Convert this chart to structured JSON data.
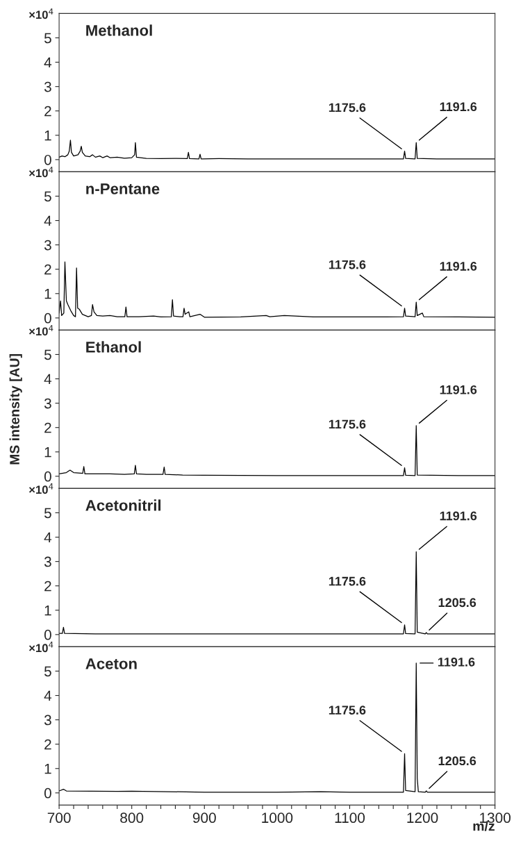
{
  "chart_data": [
    {
      "type": "line",
      "xlim": [
        700,
        1300
      ],
      "ylim": [
        -0.5,
        6.0
      ],
      "yticks": [
        0,
        1,
        2,
        3,
        4,
        5
      ],
      "tick_labels": "y",
      "grid": false,
      "legend": false,
      "marker": "none",
      "line_style": "solid",
      "series": [
        {
          "color": "#000000",
          "x": [
            700,
            704,
            708,
            712,
            714,
            715.6,
            717,
            720,
            726,
            729,
            730.5,
            732,
            736,
            742,
            746,
            750,
            756,
            760,
            766,
            770,
            780,
            790,
            800,
            804,
            805,
            806.5,
            820,
            840,
            860,
            876.5,
            878,
            879.5,
            892.5,
            894,
            895.5,
            920,
            960,
            1000,
            1050,
            1100,
            1150,
            1174,
            1175.6,
            1177,
            1190,
            1191.6,
            1193,
            1220,
            1260,
            1300
          ],
          "values": [
            0.1,
            0.15,
            0.12,
            0.2,
            0.35,
            0.8,
            0.3,
            0.15,
            0.2,
            0.35,
            0.55,
            0.3,
            0.15,
            0.12,
            0.2,
            0.1,
            0.15,
            0.08,
            0.15,
            0.08,
            0.1,
            0.06,
            0.08,
            0.2,
            0.7,
            0.1,
            0.05,
            0.04,
            0.05,
            0.04,
            0.3,
            0.04,
            0.03,
            0.22,
            0.03,
            0.04,
            0.03,
            0.03,
            0.03,
            0.03,
            0.03,
            0.03,
            0.35,
            0.05,
            0.03,
            0.7,
            0.05,
            0.03,
            0.03,
            0.03
          ]
        }
      ],
      "title": "Methanol",
      "annotations": [
        "×10$^{4}$",
        {
          "text": "1175.6",
          "x": 1175.6,
          "y": 0.35
        },
        {
          "text": "1191.6",
          "x": 1191.6,
          "y": 0.7
        }
      ]
    },
    {
      "type": "line",
      "xlim": [
        700,
        1300
      ],
      "ylim": [
        -0.5,
        6.0
      ],
      "yticks": [
        0,
        1,
        2,
        3,
        4,
        5
      ],
      "tick_labels": "y",
      "grid": false,
      "legend": false,
      "marker": "none",
      "line_style": "solid",
      "series": [
        {
          "color": "#000000",
          "x": [
            700,
            702,
            703.5,
            706.5,
            708,
            710,
            712,
            716,
            720,
            722.5,
            724,
            725.5,
            728,
            732,
            740,
            744.5,
            746,
            748,
            752,
            760,
            770,
            780,
            790.5,
            792,
            793.5,
            810,
            830,
            840,
            854.5,
            856,
            857.5,
            866,
            870.5,
            872,
            873.5,
            878.5,
            880,
            894,
            900,
            950,
            985,
            990,
            1010,
            1050,
            1100,
            1150,
            1174,
            1175.6,
            1177,
            1190,
            1191.6,
            1193,
            1200,
            1202,
            1250,
            1300
          ],
          "values": [
            0.2,
            0.7,
            0.1,
            0.2,
            2.3,
            0.7,
            0.55,
            0.3,
            0.1,
            0.05,
            2.05,
            0.4,
            0.35,
            0.15,
            0.05,
            0.1,
            0.55,
            0.25,
            0.1,
            0.08,
            0.1,
            0.05,
            0.05,
            0.45,
            0.05,
            0.05,
            0.08,
            0.04,
            0.05,
            0.75,
            0.08,
            0.05,
            0.05,
            0.4,
            0.15,
            0.25,
            0.05,
            0.15,
            0.03,
            0.04,
            0.1,
            0.05,
            0.1,
            0.04,
            0.04,
            0.04,
            0.05,
            0.4,
            0.08,
            0.05,
            0.65,
            0.1,
            0.2,
            0.05,
            0.04,
            0.03
          ]
        }
      ],
      "title": "n-Pentane",
      "annotations": [
        "×10$^{4}$",
        {
          "text": "1175.6",
          "x": 1175.6,
          "y": 0.4
        },
        {
          "text": "1191.6",
          "x": 1191.6,
          "y": 0.65
        }
      ]
    },
    {
      "type": "line",
      "xlim": [
        700,
        1300
      ],
      "ylim": [
        -0.5,
        6.0
      ],
      "yticks": [
        0,
        1,
        2,
        3,
        4,
        5
      ],
      "tick_labels": "y",
      "grid": false,
      "legend": false,
      "marker": "none",
      "line_style": "solid",
      "ylabel": "MS intensity [AU]",
      "series": [
        {
          "color": "#000000",
          "x": [
            700,
            710,
            715,
            720,
            732.5,
            734,
            735.5,
            750,
            770,
            790,
            803.5,
            805,
            806.5,
            820,
            843,
            844.6,
            846,
            870,
            900,
            1000,
            1100,
            1174,
            1175.6,
            1177,
            1190,
            1191.6,
            1193,
            1250,
            1300
          ],
          "values": [
            0.1,
            0.15,
            0.25,
            0.15,
            0.12,
            0.4,
            0.1,
            0.1,
            0.1,
            0.08,
            0.1,
            0.45,
            0.1,
            0.08,
            0.08,
            0.38,
            0.08,
            0.05,
            0.04,
            0.03,
            0.03,
            0.03,
            0.35,
            0.04,
            0.03,
            2.08,
            0.05,
            0.03,
            0.03
          ]
        }
      ],
      "title": "Ethanol",
      "annotations": [
        "×10$^{4}$",
        {
          "text": "1175.6",
          "x": 1175.6,
          "y": 0.35
        },
        {
          "text": "1191.6",
          "x": 1191.6,
          "y": 2.08
        }
      ]
    },
    {
      "type": "line",
      "xlim": [
        700,
        1300
      ],
      "ylim": [
        -0.5,
        6.0
      ],
      "yticks": [
        0,
        1,
        2,
        3,
        4,
        5
      ],
      "tick_labels": "y",
      "grid": false,
      "legend": false,
      "marker": "none",
      "line_style": "solid",
      "series": [
        {
          "color": "#000000",
          "x": [
            700,
            704.5,
            706,
            707.5,
            750,
            800,
            900,
            1000,
            1100,
            1174,
            1175.6,
            1177,
            1190,
            1191.6,
            1193,
            1204,
            1205.6,
            1207,
            1250,
            1300
          ],
          "values": [
            0.05,
            0.05,
            0.3,
            0.05,
            0.03,
            0.03,
            0.03,
            0.03,
            0.03,
            0.03,
            0.4,
            0.04,
            0.03,
            3.4,
            0.1,
            0.03,
            0.08,
            0.03,
            0.03,
            0.03
          ]
        }
      ],
      "title": "Acetonitril",
      "annotations": [
        "×10$^{4}$",
        {
          "text": "1175.6",
          "x": 1175.6,
          "y": 0.4
        },
        {
          "text": "1191.6",
          "x": 1191.6,
          "y": 3.4
        },
        {
          "text": "1205.6",
          "x": 1205.6,
          "y": 0.08
        }
      ]
    },
    {
      "type": "line",
      "xlim": [
        700,
        1300
      ],
      "ylim": [
        -0.5,
        6.0
      ],
      "yticks": [
        0,
        1,
        2,
        3,
        4,
        5
      ],
      "grid": false,
      "legend": false,
      "marker": "none",
      "line_style": "solid",
      "xlabel": "m/z",
      "xticks": [
        700,
        {
          "value": 720,
          "label": null
        },
        {
          "value": 740,
          "label": null
        },
        {
          "value": 760,
          "label": null
        },
        {
          "value": 780,
          "label": null
        },
        800,
        {
          "value": 820,
          "label": null
        },
        {
          "value": 840,
          "label": null
        },
        {
          "value": 860,
          "label": null
        },
        {
          "value": 880,
          "label": null
        },
        900,
        {
          "value": 920,
          "label": null
        },
        {
          "value": 940,
          "label": null
        },
        {
          "value": 960,
          "label": null
        },
        {
          "value": 980,
          "label": null
        },
        1000,
        {
          "value": 1020,
          "label": null
        },
        {
          "value": 1040,
          "label": null
        },
        {
          "value": 1060,
          "label": null
        },
        {
          "value": 1080,
          "label": null
        },
        1100,
        {
          "value": 1120,
          "label": null
        },
        {
          "value": 1140,
          "label": null
        },
        {
          "value": 1160,
          "label": null
        },
        {
          "value": 1180,
          "label": null
        },
        1200,
        {
          "value": 1220,
          "label": null
        },
        {
          "value": 1240,
          "label": null
        },
        {
          "value": 1260,
          "label": null
        },
        {
          "value": 1280,
          "label": null
        },
        1300
      ],
      "series": [
        {
          "color": "#000000",
          "x": [
            700,
            706,
            710,
            780,
            800,
            900,
            1000,
            1060,
            1100,
            1174,
            1175.6,
            1177,
            1190,
            1191.6,
            1193,
            1194.5,
            1204,
            1205.6,
            1207,
            1250,
            1300
          ],
          "values": [
            0.08,
            0.15,
            0.08,
            0.06,
            0.07,
            0.03,
            0.03,
            0.05,
            0.03,
            0.03,
            1.61,
            0.1,
            0.05,
            5.33,
            0.6,
            0.05,
            0.03,
            0.08,
            0.03,
            0.03,
            0.03
          ]
        }
      ],
      "title": "Aceton",
      "annotations": [
        "×10$^{4}$",
        {
          "text": "1175.6",
          "x": 1175.6,
          "y": 1.61
        },
        {
          "text": "1191.6",
          "x": 1191.6,
          "y": 5.33
        },
        {
          "text": "1205.6",
          "x": 1205.6,
          "y": 0.08
        }
      ]
    }
  ]
}
